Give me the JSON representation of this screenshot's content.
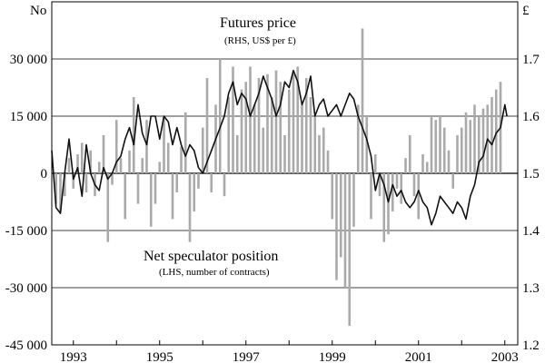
{
  "chart_data": {
    "type": "bar-line combo",
    "left_axis": {
      "unit": "No",
      "ylim": [
        -45000,
        45000
      ],
      "ticks": [
        30000,
        15000,
        0,
        -15000,
        -30000,
        -45000
      ],
      "tick_labels": [
        "30 000",
        "15 000",
        "0",
        "-15 000",
        "-30 000",
        "-45 000"
      ]
    },
    "right_axis": {
      "unit": "£",
      "ylim": [
        1.2,
        1.8
      ],
      "ticks": [
        1.7,
        1.6,
        1.5,
        1.4,
        1.3,
        1.2
      ],
      "tick_labels": [
        "1.7",
        "1.6",
        "1.5",
        "1.4",
        "1.3",
        "1.2"
      ]
    },
    "x_axis": {
      "range": [
        1992.5,
        2003.3
      ],
      "tick_labels": [
        "1993",
        "1995",
        "1997",
        "1999",
        "2001",
        "2003"
      ],
      "tick_positions": [
        1993,
        1995,
        1997,
        1999,
        2001,
        2003
      ]
    },
    "annotations": [
      {
        "title": "Futures price",
        "subtitle": "(RHS, US$ per £)"
      },
      {
        "title": "Net speculator position",
        "subtitle": "(LHS, number of contracts)"
      }
    ],
    "series": [
      {
        "name": "Net speculator position",
        "type": "bar",
        "axis": "left",
        "color": "#aaaaaa",
        "x": [
          1992.6,
          1992.7,
          1992.8,
          1992.9,
          1993.0,
          1993.1,
          1993.2,
          1993.3,
          1993.4,
          1993.5,
          1993.6,
          1993.7,
          1993.8,
          1993.9,
          1994.0,
          1994.1,
          1994.2,
          1994.3,
          1994.4,
          1994.5,
          1994.6,
          1994.7,
          1994.8,
          1994.9,
          1995.0,
          1995.1,
          1995.2,
          1995.3,
          1995.4,
          1995.5,
          1995.6,
          1995.7,
          1995.8,
          1995.9,
          1996.0,
          1996.1,
          1996.2,
          1996.3,
          1996.4,
          1996.5,
          1996.6,
          1996.7,
          1996.8,
          1996.9,
          1997.0,
          1997.1,
          1997.2,
          1997.3,
          1997.4,
          1997.5,
          1997.6,
          1997.7,
          1997.8,
          1997.9,
          1998.0,
          1998.1,
          1998.2,
          1998.3,
          1998.4,
          1998.5,
          1998.6,
          1998.7,
          1998.8,
          1998.9,
          1999.0,
          1999.1,
          1999.2,
          1999.3,
          1999.4,
          1999.5,
          1999.6,
          1999.7,
          1999.8,
          1999.9,
          2000.0,
          2000.1,
          2000.2,
          2000.3,
          2000.4,
          2000.5,
          2000.6,
          2000.7,
          2000.8,
          2000.9,
          2001.0,
          2001.1,
          2001.2,
          2001.3,
          2001.4,
          2001.5,
          2001.6,
          2001.7,
          2001.8,
          2001.9,
          2002.0,
          2002.1,
          2002.2,
          2002.3,
          2002.4,
          2002.5,
          2002.6,
          2002.7,
          2002.8,
          2002.9
        ],
        "values": [
          -8000,
          -10000,
          -6000,
          4000,
          -4000,
          5000,
          8000,
          -5000,
          6000,
          -6000,
          3000,
          10000,
          -18000,
          -3000,
          14000,
          4000,
          -12000,
          6000,
          20000,
          -8000,
          4000,
          14000,
          -14000,
          -8000,
          3000,
          15000,
          8000,
          -12000,
          -5000,
          7000,
          16000,
          -18000,
          -10000,
          -4000,
          12000,
          25000,
          -5000,
          18000,
          30000,
          -6000,
          20000,
          28000,
          10000,
          22000,
          24000,
          28000,
          18000,
          25000,
          12000,
          26000,
          20000,
          27000,
          24000,
          10000,
          22000,
          26000,
          28000,
          18000,
          25000,
          20000,
          15000,
          10000,
          12000,
          6000,
          -12000,
          -28000,
          -22000,
          -30000,
          -40000,
          -14000,
          18000,
          38000,
          15000,
          -12000,
          5000,
          -6000,
          -18000,
          -16000,
          -10000,
          -4000,
          -8000,
          4000,
          10000,
          -6000,
          -12000,
          5000,
          3000,
          15000,
          14000,
          15000,
          12000,
          6000,
          -4000,
          10000,
          12000,
          16000,
          14000,
          18000,
          15000,
          17000,
          18000,
          20000,
          22000,
          24000
        ]
      },
      {
        "name": "Futures price",
        "type": "line",
        "axis": "right",
        "color": "#111111",
        "x": [
          1992.5,
          1992.6,
          1992.7,
          1992.8,
          1992.9,
          1993.0,
          1993.1,
          1993.2,
          1993.3,
          1993.4,
          1993.5,
          1993.6,
          1993.7,
          1993.8,
          1993.9,
          1994.0,
          1994.1,
          1994.2,
          1994.3,
          1994.4,
          1994.5,
          1994.6,
          1994.7,
          1994.8,
          1994.9,
          1995.0,
          1995.1,
          1995.2,
          1995.3,
          1995.4,
          1995.5,
          1995.6,
          1995.7,
          1995.8,
          1995.9,
          1996.0,
          1996.1,
          1996.2,
          1996.3,
          1996.4,
          1996.5,
          1996.6,
          1996.7,
          1996.8,
          1996.9,
          1997.0,
          1997.1,
          1997.2,
          1997.3,
          1997.4,
          1997.5,
          1997.6,
          1997.7,
          1997.8,
          1997.9,
          1998.0,
          1998.1,
          1998.2,
          1998.3,
          1998.4,
          1998.5,
          1998.6,
          1998.7,
          1998.8,
          1998.9,
          1999.0,
          1999.1,
          1999.2,
          1999.3,
          1999.4,
          1999.5,
          1999.6,
          1999.7,
          1999.8,
          1999.9,
          2000.0,
          2000.1,
          2000.2,
          2000.3,
          2000.4,
          2000.5,
          2000.6,
          2000.7,
          2000.8,
          2000.9,
          2001.0,
          2001.1,
          2001.2,
          2001.3,
          2001.4,
          2001.5,
          2001.6,
          2001.7,
          2001.8,
          2001.9,
          2002.0,
          2002.1,
          2002.2,
          2002.3,
          2002.4,
          2002.5,
          2002.6,
          2002.7,
          2002.8,
          2002.9,
          2003.0,
          2003.05
        ],
        "values": [
          1.54,
          1.44,
          1.43,
          1.5,
          1.56,
          1.49,
          1.51,
          1.46,
          1.55,
          1.5,
          1.48,
          1.47,
          1.51,
          1.49,
          1.5,
          1.52,
          1.53,
          1.56,
          1.58,
          1.55,
          1.62,
          1.57,
          1.55,
          1.6,
          1.6,
          1.56,
          1.6,
          1.59,
          1.55,
          1.58,
          1.55,
          1.53,
          1.55,
          1.54,
          1.51,
          1.5,
          1.52,
          1.54,
          1.56,
          1.58,
          1.6,
          1.64,
          1.66,
          1.62,
          1.64,
          1.63,
          1.6,
          1.62,
          1.64,
          1.67,
          1.65,
          1.63,
          1.6,
          1.62,
          1.66,
          1.65,
          1.68,
          1.66,
          1.62,
          1.64,
          1.67,
          1.6,
          1.62,
          1.63,
          1.6,
          1.61,
          1.62,
          1.6,
          1.62,
          1.64,
          1.63,
          1.6,
          1.58,
          1.56,
          1.53,
          1.47,
          1.5,
          1.48,
          1.45,
          1.48,
          1.46,
          1.47,
          1.45,
          1.44,
          1.45,
          1.47,
          1.45,
          1.44,
          1.41,
          1.43,
          1.46,
          1.45,
          1.44,
          1.43,
          1.45,
          1.44,
          1.42,
          1.46,
          1.48,
          1.52,
          1.53,
          1.56,
          1.55,
          1.57,
          1.58,
          1.62,
          1.6
        ]
      }
    ]
  }
}
